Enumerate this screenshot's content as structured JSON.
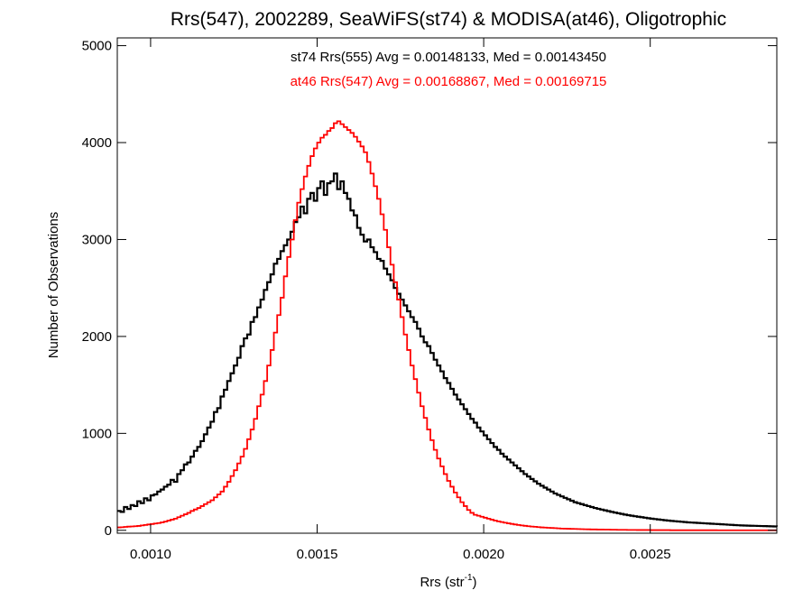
{
  "chart_data": {
    "type": "histogram",
    "title": "Rrs(547), 2002289, SeaWiFS(st74) & MODISA(at46), Oligotrophic",
    "xlabel_main": "Rrs (str",
    "xlabel_sup": "-1",
    "xlabel_close": ")",
    "ylabel": "Number of Observations",
    "xlim": [
      0.0009,
      0.00288
    ],
    "ylim": [
      -30,
      5080
    ],
    "x_ticks": [
      0.001,
      0.0015,
      0.002,
      0.0025
    ],
    "x_tick_labels": [
      "0.0010",
      "0.0015",
      "0.0020",
      "0.0025"
    ],
    "y_ticks": [
      0,
      1000,
      2000,
      3000,
      4000,
      5000
    ],
    "y_tick_labels": [
      "0",
      "1000",
      "2000",
      "3000",
      "4000",
      "5000"
    ],
    "bin_width": 1e-05,
    "series": [
      {
        "color": "#000000",
        "bin_start": 0.0009,
        "stroke_width": 2.2,
        "values": [
          200,
          190,
          240,
          220,
          260,
          250,
          300,
          280,
          330,
          310,
          360,
          370,
          400,
          420,
          450,
          470,
          520,
          500,
          580,
          620,
          680,
          700,
          760,
          820,
          860,
          920,
          990,
          1060,
          1120,
          1220,
          1260,
          1380,
          1450,
          1540,
          1620,
          1700,
          1780,
          1900,
          1980,
          2020,
          2150,
          2200,
          2300,
          2380,
          2480,
          2560,
          2640,
          2750,
          2800,
          2880,
          2940,
          3000,
          3080,
          3180,
          3230,
          3340,
          3270,
          3420,
          3480,
          3400,
          3530,
          3600,
          3460,
          3580,
          3600,
          3680,
          3520,
          3600,
          3480,
          3420,
          3300,
          3250,
          3120,
          3050,
          2980,
          3000,
          2920,
          2870,
          2800,
          2780,
          2700,
          2640,
          2580,
          2500,
          2440,
          2380,
          2320,
          2260,
          2200,
          2150,
          2080,
          2000,
          1940,
          1900,
          1830,
          1760,
          1700,
          1640,
          1570,
          1520,
          1460,
          1400,
          1350,
          1300,
          1250,
          1200,
          1150,
          1110,
          1060,
          1020,
          980,
          940,
          900,
          860,
          830,
          790,
          760,
          730,
          700,
          670,
          640,
          610,
          580,
          555,
          530,
          505,
          480,
          460,
          440,
          420,
          400,
          380,
          365,
          350,
          335,
          320,
          305,
          290,
          280,
          270,
          260,
          250,
          240,
          230,
          222,
          214,
          206,
          198,
          190,
          183,
          176,
          169,
          162,
          156,
          150,
          145,
          140,
          135,
          130,
          125,
          120,
          116,
          112,
          108,
          104,
          100,
          97,
          94,
          91,
          88,
          85,
          82,
          80,
          78,
          76,
          74,
          72,
          70,
          68,
          66,
          64,
          62,
          60,
          58,
          56,
          54,
          52,
          50,
          49,
          48,
          47,
          46,
          45,
          44,
          43,
          42,
          41,
          40,
          39,
          38,
          37,
          36
        ]
      },
      {
        "color": "#ff0000",
        "bin_start": 0.0009,
        "stroke_width": 1.8,
        "values": [
          30,
          32,
          35,
          38,
          40,
          42,
          45,
          50,
          55,
          60,
          65,
          70,
          75,
          82,
          90,
          100,
          110,
          120,
          135,
          150,
          165,
          180,
          200,
          215,
          230,
          250,
          270,
          290,
          310,
          340,
          370,
          400,
          450,
          500,
          560,
          620,
          690,
          760,
          840,
          940,
          1040,
          1150,
          1280,
          1400,
          1540,
          1700,
          1860,
          2040,
          2220,
          2400,
          2620,
          2820,
          3000,
          3200,
          3380,
          3520,
          3650,
          3760,
          3860,
          3940,
          4000,
          4050,
          4080,
          4120,
          4150,
          4200,
          4220,
          4190,
          4160,
          4130,
          4100,
          4060,
          4010,
          3960,
          3900,
          3800,
          3680,
          3550,
          3420,
          3260,
          3100,
          2920,
          2740,
          2560,
          2380,
          2200,
          2020,
          1860,
          1700,
          1560,
          1420,
          1280,
          1160,
          1040,
          930,
          830,
          740,
          660,
          580,
          510,
          450,
          390,
          340,
          290,
          250,
          210,
          180,
          160,
          150,
          140,
          130,
          120,
          110,
          100,
          92,
          85,
          78,
          72,
          66,
          60,
          55,
          50,
          46,
          42,
          39,
          36,
          33,
          30,
          28,
          26,
          24,
          22,
          20,
          18,
          17,
          16,
          15,
          14,
          13,
          12,
          11,
          10,
          9,
          9,
          8,
          8,
          7,
          7,
          6,
          6,
          5,
          5,
          5,
          4,
          4,
          4,
          3,
          3,
          3,
          3,
          2,
          2,
          2,
          2,
          2,
          2,
          1,
          1,
          1,
          1,
          1,
          1,
          1,
          1,
          1,
          1,
          1,
          1,
          1,
          1,
          0,
          0,
          0,
          0,
          0,
          0,
          0,
          0,
          0,
          0,
          0,
          0,
          0,
          0,
          0,
          0,
          0,
          0,
          0,
          0,
          0,
          0,
          0,
          0
        ]
      }
    ],
    "annotations": [
      {
        "text": "st74 Rrs(555) Avg = 0.00148133, Med = 0.00143450",
        "color": "#000000"
      },
      {
        "text": "at46 Rrs(547) Avg = 0.00168867, Med = 0.00169715",
        "color": "#ff0000"
      }
    ]
  }
}
